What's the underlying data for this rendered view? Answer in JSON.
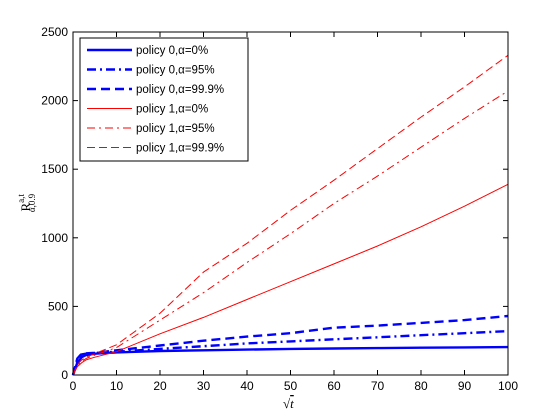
{
  "chart_data": {
    "type": "line",
    "xlabel": "√t",
    "ylabel": {
      "main": "R",
      "sup": "a,t",
      "sub": "α,0.9"
    },
    "xlim": [
      0,
      100
    ],
    "ylim": [
      0,
      2500
    ],
    "xticks": [
      0,
      10,
      20,
      30,
      40,
      50,
      60,
      70,
      80,
      90,
      100
    ],
    "yticks": [
      0,
      500,
      1000,
      1500,
      2000,
      2500
    ],
    "grid": false,
    "legend_position": "top-left",
    "series": [
      {
        "name": "policy 0,α=0%",
        "color": "#0000ff",
        "style": "solid",
        "width": "thick",
        "x": [
          0,
          1,
          2,
          3,
          5,
          10,
          20,
          30,
          40,
          50,
          60,
          70,
          80,
          90,
          100
        ],
        "y": [
          0,
          90,
          130,
          145,
          155,
          165,
          175,
          180,
          185,
          190,
          193,
          196,
          199,
          201,
          203
        ]
      },
      {
        "name": "policy 0,α=95%",
        "color": "#0000ff",
        "style": "dashdot",
        "width": "thick",
        "x": [
          0,
          1,
          2,
          3,
          5,
          10,
          20,
          30,
          40,
          50,
          60,
          70,
          80,
          90,
          100
        ],
        "y": [
          0,
          110,
          150,
          155,
          160,
          170,
          190,
          210,
          230,
          245,
          260,
          275,
          290,
          305,
          320
        ]
      },
      {
        "name": "policy 0,α=99.9%",
        "color": "#0000ff",
        "style": "dashed",
        "width": "thick",
        "x": [
          0,
          1,
          2,
          3,
          5,
          10,
          20,
          30,
          40,
          50,
          60,
          70,
          80,
          90,
          100
        ],
        "y": [
          0,
          120,
          155,
          158,
          162,
          180,
          215,
          250,
          280,
          305,
          345,
          360,
          380,
          400,
          430
        ]
      },
      {
        "name": "policy 1,α=0%",
        "color": "#ff0000",
        "style": "solid",
        "width": "thin",
        "x": [
          0,
          1,
          2,
          3,
          5,
          10,
          20,
          30,
          40,
          50,
          60,
          70,
          80,
          90,
          100
        ],
        "y": [
          0,
          60,
          90,
          110,
          130,
          170,
          300,
          420,
          550,
          680,
          810,
          940,
          1080,
          1230,
          1390
        ]
      },
      {
        "name": "policy 1,α=95%",
        "color": "#ff0000",
        "style": "dashdot",
        "width": "thin",
        "x": [
          0,
          1,
          2,
          3,
          5,
          10,
          20,
          30,
          40,
          50,
          60,
          70,
          80,
          90,
          100
        ],
        "y": [
          0,
          70,
          100,
          120,
          145,
          200,
          400,
          600,
          820,
          1030,
          1250,
          1450,
          1660,
          1870,
          2070
        ]
      },
      {
        "name": "policy 1,α=99.9%",
        "color": "#ff0000",
        "style": "dashed",
        "width": "thin",
        "x": [
          0,
          1,
          2,
          3,
          5,
          10,
          20,
          30,
          40,
          50,
          60,
          70,
          80,
          90,
          100
        ],
        "y": [
          0,
          75,
          110,
          130,
          155,
          220,
          450,
          750,
          960,
          1200,
          1420,
          1650,
          1880,
          2100,
          2330
        ]
      }
    ]
  }
}
